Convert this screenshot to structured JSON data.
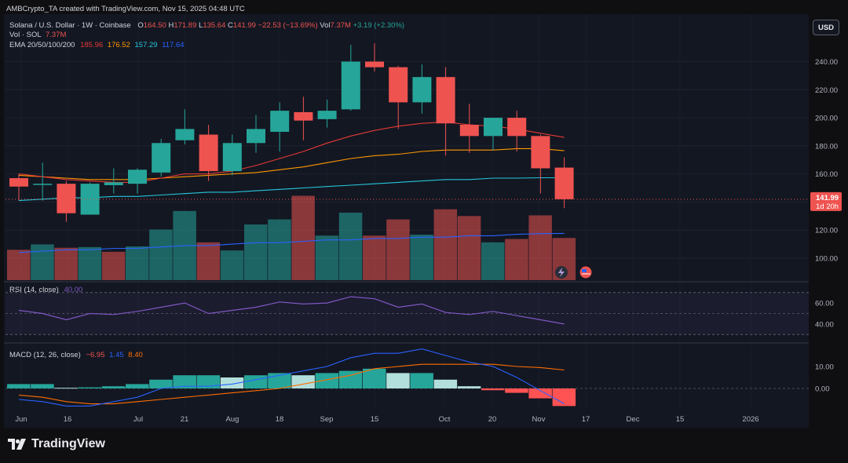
{
  "top_bar": {
    "attribution": "AMBCrypto_TA created with TradingView.com, Nov 15, 2025 04:48 UTC"
  },
  "legend": {
    "symbol": "Solana / U.S. Dollar · 1W · Coinbase",
    "ohlc": [
      {
        "label": "O",
        "value": "164.50"
      },
      {
        "label": "H",
        "value": "171.89"
      },
      {
        "label": "L",
        "value": "135.64"
      },
      {
        "label": "C",
        "value": "141.99"
      }
    ],
    "change": "−22.53 (−13.69%)",
    "vol_label": "Vol",
    "vol_value": "7.37M",
    "vol_change": "+3.19 (+2.30%)",
    "vol_sol_label": "Vol · SOL",
    "vol_sol_value": "7.37M",
    "ema_label": "EMA 20/50/100/200",
    "ema_values": [
      "185.96",
      "176.52",
      "157.29",
      "117.64"
    ]
  },
  "currency_button": "USD",
  "price_badge": {
    "price": "141.99",
    "countdown": "1d 20h"
  },
  "rsi_legend": {
    "label": "RSI (14, close)",
    "value": "40.00"
  },
  "macd_legend": {
    "label": "MACD (12, 26, close)",
    "values": [
      "−6.95",
      "1.45",
      "8.40"
    ]
  },
  "brand": "TradingView",
  "colors": {
    "up": "#26a69a",
    "down": "#ef5350",
    "ema20": "#e53935",
    "ema50": "#ff9800",
    "ema100": "#26c6da",
    "ema200": "#2962ff",
    "rsi": "#7e57c2",
    "macd": "#2962ff",
    "signal": "#ff6d00",
    "background": "#131722"
  },
  "chart_data": {
    "type": "candlestick",
    "price_axis": {
      "ticks": [
        100,
        120,
        140,
        160,
        180,
        200,
        220,
        240
      ],
      "labels": [
        "100.00",
        "120.00",
        "140.00",
        "160.00",
        "180.00",
        "200.00",
        "220.00",
        "240.00"
      ]
    },
    "time_axis": {
      "labels": [
        "Jun",
        "16",
        "Jul",
        "21",
        "Aug",
        "18",
        "Sep",
        "15",
        "Oct",
        "20",
        "Nov",
        "17",
        "Dec",
        "15",
        "2026"
      ]
    },
    "candles": [
      {
        "o": 157,
        "h": 160,
        "l": 141,
        "c": 151
      },
      {
        "o": 153,
        "h": 168,
        "l": 141,
        "c": 153
      },
      {
        "o": 153,
        "h": 155,
        "l": 126,
        "c": 132
      },
      {
        "o": 131,
        "h": 154,
        "l": 131,
        "c": 153
      },
      {
        "o": 152,
        "h": 164,
        "l": 146,
        "c": 154
      },
      {
        "o": 153,
        "h": 164,
        "l": 146,
        "c": 163
      },
      {
        "o": 161,
        "h": 185,
        "l": 158,
        "c": 182
      },
      {
        "o": 184,
        "h": 206,
        "l": 181,
        "c": 192
      },
      {
        "o": 188,
        "h": 195,
        "l": 155,
        "c": 162
      },
      {
        "o": 162,
        "h": 188,
        "l": 159,
        "c": 182
      },
      {
        "o": 182,
        "h": 202,
        "l": 175,
        "c": 192
      },
      {
        "o": 190,
        "h": 211,
        "l": 176,
        "c": 205
      },
      {
        "o": 204,
        "h": 215,
        "l": 184,
        "c": 198
      },
      {
        "o": 199,
        "h": 213,
        "l": 193,
        "c": 205
      },
      {
        "o": 206,
        "h": 252,
        "l": 205,
        "c": 240
      },
      {
        "o": 240,
        "h": 253,
        "l": 233,
        "c": 236
      },
      {
        "o": 236,
        "h": 237,
        "l": 192,
        "c": 211
      },
      {
        "o": 211,
        "h": 238,
        "l": 203,
        "c": 229
      },
      {
        "o": 229,
        "h": 236,
        "l": 173,
        "c": 196
      },
      {
        "o": 195,
        "h": 210,
        "l": 175,
        "c": 187
      },
      {
        "o": 187,
        "h": 200,
        "l": 177,
        "c": 200
      },
      {
        "o": 200,
        "h": 205,
        "l": 176,
        "c": 187
      },
      {
        "o": 187,
        "h": 188,
        "l": 146,
        "c": 164
      },
      {
        "o": 164.5,
        "h": 171.89,
        "l": 135.64,
        "c": 141.99
      }
    ],
    "volume": [
      {
        "v": 90,
        "up": false
      },
      {
        "v": 106,
        "up": true
      },
      {
        "v": 96,
        "up": false
      },
      {
        "v": 98,
        "up": true
      },
      {
        "v": 84,
        "up": false
      },
      {
        "v": 100,
        "up": true
      },
      {
        "v": 150,
        "up": true
      },
      {
        "v": 205,
        "up": true
      },
      {
        "v": 112,
        "up": false
      },
      {
        "v": 88,
        "up": true
      },
      {
        "v": 165,
        "up": true
      },
      {
        "v": 180,
        "up": true
      },
      {
        "v": 250,
        "up": false
      },
      {
        "v": 132,
        "up": true
      },
      {
        "v": 200,
        "up": true
      },
      {
        "v": 132,
        "up": false
      },
      {
        "v": 180,
        "up": false
      },
      {
        "v": 135,
        "up": true
      },
      {
        "v": 210,
        "up": false
      },
      {
        "v": 190,
        "up": false
      },
      {
        "v": 112,
        "up": true
      },
      {
        "v": 122,
        "up": false
      },
      {
        "v": 192,
        "up": false
      },
      {
        "v": 125,
        "up": false
      }
    ],
    "ema20": [
      160,
      158,
      156,
      155,
      154,
      154,
      157,
      160,
      160,
      162,
      166,
      171,
      176,
      182,
      187,
      191,
      194,
      196,
      197,
      195,
      194,
      192,
      189,
      186
    ],
    "ema50": [
      159,
      158,
      157,
      156,
      156,
      156,
      157,
      158,
      159,
      160,
      161,
      163,
      165,
      168,
      171,
      173,
      174,
      176,
      177,
      177,
      177,
      178,
      178,
      176.5
    ],
    "ema100": [
      141,
      142,
      143,
      143,
      144,
      144,
      145,
      146,
      147,
      147,
      148,
      149,
      150,
      151,
      152,
      153,
      154,
      155,
      156,
      156,
      157,
      157,
      157.3,
      157.3
    ],
    "ema200": [
      104,
      105,
      106,
      106,
      107,
      107,
      108,
      109,
      109,
      110,
      111,
      111,
      112,
      113,
      113,
      114,
      114,
      115,
      115,
      116,
      116,
      117,
      117.5,
      117.64
    ],
    "rsi": {
      "range": [
        25,
        75
      ],
      "ticks": [
        40,
        60
      ],
      "bands": [
        30,
        70
      ],
      "values": [
        53,
        50,
        44,
        50,
        49,
        52,
        56,
        60,
        50,
        53,
        56,
        61,
        59,
        60,
        66,
        64,
        56,
        59,
        51,
        49,
        52,
        48,
        44,
        40
      ]
    },
    "macd": {
      "ticks": [
        0,
        10
      ],
      "macd_line": [
        -5,
        -6,
        -8,
        -8,
        -6,
        -4,
        0,
        1,
        1,
        2,
        4,
        6,
        8,
        10,
        14,
        16,
        16,
        18,
        15,
        12,
        10,
        5,
        -1,
        -6.95
      ],
      "signal_line": [
        -3,
        -4,
        -6,
        -7,
        -7,
        -6,
        -5,
        -4,
        -3,
        -2,
        -1,
        0,
        2,
        4,
        6,
        9,
        10,
        11,
        11,
        11,
        11,
        10,
        9.5,
        8.4
      ],
      "histogram": [
        2,
        2,
        0.3,
        0.5,
        1,
        2,
        4,
        6,
        6,
        5,
        6,
        7,
        6,
        7,
        8,
        9,
        7,
        7,
        4,
        1,
        -0.8,
        -2,
        -4.5,
        -8
      ]
    }
  }
}
